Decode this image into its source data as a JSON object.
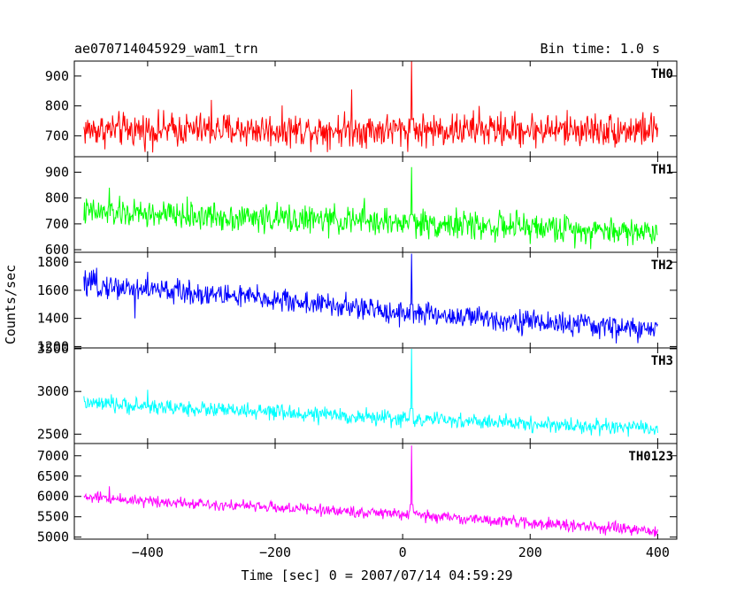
{
  "header": {
    "title": "ae070714045929_wam1_trn",
    "bin_time": "Bin time: 1.0 s"
  },
  "chart_data": {
    "type": "line",
    "xlabel": "Time [sec] 0 = 2007/07/14 04:59:29",
    "ylabel": "Counts/sec",
    "xlim": [
      -515,
      430
    ],
    "x_ticks": [
      -400,
      -200,
      0,
      200,
      400
    ],
    "x_tick_labels": [
      "−400",
      "−200",
      "0",
      "200",
      "400"
    ],
    "time_start": -500,
    "time_end": 400,
    "bin": 1.0,
    "grid": false,
    "panels": [
      {
        "name": "TH0",
        "color": "#ff0000",
        "ylim": [
          630,
          950
        ],
        "y_ticks": [
          700,
          800,
          900
        ],
        "y_tick_labels": [
          "700",
          "800",
          "900"
        ],
        "trend": [
          [
            -500,
            720
          ],
          [
            400,
            720
          ]
        ],
        "noise_sd": 28,
        "spikes": [
          [
            -80,
            855
          ],
          [
            -300,
            820
          ],
          [
            120,
            800
          ]
        ],
        "burst": {
          "time": 14,
          "peak": 950
        }
      },
      {
        "name": "TH1",
        "color": "#00ff00",
        "ylim": [
          590,
          960
        ],
        "y_ticks": [
          600,
          700,
          800,
          900
        ],
        "y_tick_labels": [
          "600",
          "700",
          "800",
          "900"
        ],
        "trend": [
          [
            -500,
            745
          ],
          [
            0,
            705
          ],
          [
            400,
            668
          ]
        ],
        "noise_sd": 27,
        "spikes": [
          [
            -460,
            840
          ],
          [
            -60,
            800
          ]
        ],
        "burst": {
          "time": 14,
          "peak": 920
        }
      },
      {
        "name": "TH2",
        "color": "#0000ff",
        "ylim": [
          1190,
          1870
        ],
        "y_ticks": [
          1200,
          1400,
          1600,
          1800
        ],
        "y_tick_labels": [
          "1200",
          "1400",
          "1600",
          "1800"
        ],
        "trend": [
          [
            -500,
            1640
          ],
          [
            -250,
            1555
          ],
          [
            0,
            1440
          ],
          [
            400,
            1315
          ]
        ],
        "noise_sd": 42,
        "spikes": [
          [
            -480,
            1760
          ],
          [
            -400,
            1730
          ],
          [
            -420,
            1400
          ]
        ],
        "burst": {
          "time": 14,
          "peak": 1860
        }
      },
      {
        "name": "TH3",
        "color": "#00ffff",
        "ylim": [
          2390,
          3510
        ],
        "y_ticks": [
          2500,
          3000,
          3500
        ],
        "y_tick_labels": [
          "2500",
          "3000",
          "3500"
        ],
        "trend": [
          [
            -500,
            2860
          ],
          [
            0,
            2680
          ],
          [
            400,
            2560
          ]
        ],
        "noise_sd": 45,
        "spikes": [
          [
            -400,
            3020
          ]
        ],
        "burst": {
          "time": 14,
          "peak": 3500
        }
      },
      {
        "name": "TH0123",
        "color": "#ff00ff",
        "ylim": [
          4950,
          7300
        ],
        "y_ticks": [
          5000,
          5500,
          6000,
          6500,
          7000
        ],
        "y_tick_labels": [
          "5000",
          "5500",
          "6000",
          "6500",
          "7000"
        ],
        "trend": [
          [
            -500,
            5980
          ],
          [
            0,
            5560
          ],
          [
            400,
            5140
          ]
        ],
        "noise_sd": 70,
        "spikes": [
          [
            -460,
            6250
          ]
        ],
        "burst": {
          "time": 14,
          "peak": 7250
        }
      }
    ]
  }
}
